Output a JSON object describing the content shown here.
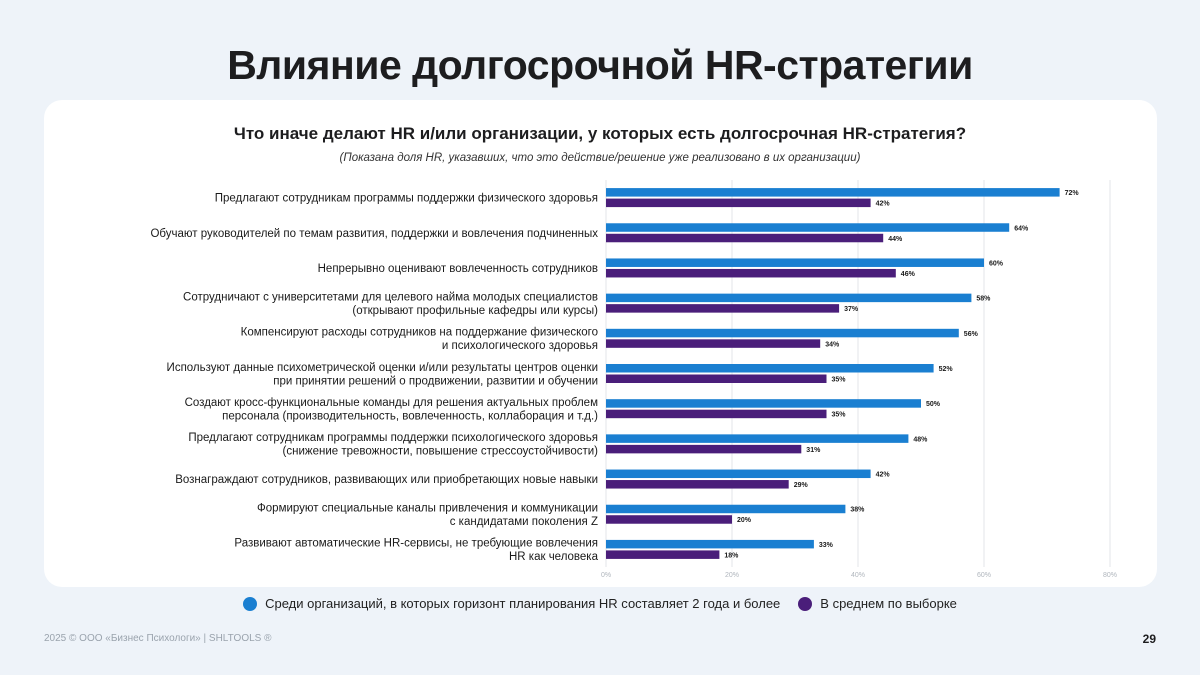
{
  "page": {
    "title": "Влияние долгосрочной HR-стратегии",
    "footer": "2025 © ООО «Бизнес Психологи» | SHLTOOLS ®",
    "page_number": "29"
  },
  "colors": {
    "series1": "#1a7fd1",
    "series2": "#4a1e7a",
    "grid": "#e3e6ea"
  },
  "chart_data": {
    "type": "bar",
    "orientation": "horizontal",
    "title": "Что иначе делают HR и/или организации, у которых есть долгосрочная HR-стратегия?",
    "subtitle": "(Показана доля HR, указавших, что это действие/решение уже реализовано в их организации)",
    "categories": [
      [
        "Предлагают сотрудникам программы поддержки физического здоровья"
      ],
      [
        "Обучают руководителей по темам развития, поддержки и вовлечения подчиненных"
      ],
      [
        "Непрерывно оценивают вовлеченность сотрудников"
      ],
      [
        "Сотрудничают с университетами для целевого найма молодых специалистов",
        "(открывают профильные кафедры или курсы)"
      ],
      [
        "Компенсируют расходы сотрудников на поддержание физического",
        "и психологического здоровья"
      ],
      [
        "Используют данные психометрической оценки и/или результаты центров оценки",
        "при принятии решений о продвижении, развитии и обучении"
      ],
      [
        "Создают кросс-функциональные команды для решения актуальных проблем",
        "персонала (производительность, вовлеченность, коллаборация и т.д.)"
      ],
      [
        "Предлагают сотрудникам программы поддержки психологического здоровья",
        "(снижение тревожности, повышение стрессоустойчивости)"
      ],
      [
        "Вознаграждают сотрудников, развивающих или приобретающих новые навыки"
      ],
      [
        "Формируют специальные каналы привлечения и коммуникации",
        "с кандидатами поколения Z"
      ],
      [
        "Развивают автоматические HR-сервисы, не требующие вовлечения",
        "HR как человека"
      ]
    ],
    "series": [
      {
        "name": "Среди организаций, в которых горизонт планирования HR составляет 2 года и более",
        "values": [
          72,
          64,
          60,
          58,
          56,
          52,
          50,
          48,
          42,
          38,
          33
        ]
      },
      {
        "name": "В среднем по выборке",
        "values": [
          42,
          44,
          46,
          37,
          34,
          35,
          35,
          31,
          29,
          20,
          18
        ]
      }
    ],
    "xlim": [
      0,
      80
    ],
    "xticks": [
      0,
      20,
      40,
      60,
      80
    ],
    "value_suffix": "%",
    "grid": true,
    "legend_position": "bottom"
  }
}
